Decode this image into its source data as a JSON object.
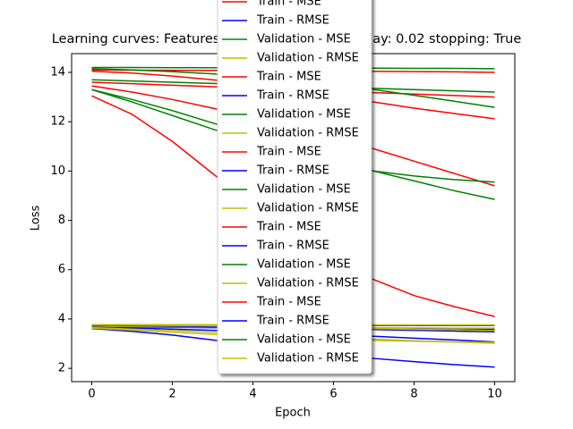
{
  "chart_data": {
    "type": "line",
    "title": "Learning curves: Features: 30 lr: 0.01 weight_decay: 0.02 stopping: True",
    "x_label": "Epoch",
    "y_label": "Loss",
    "x": [
      0,
      1,
      2,
      3,
      4,
      5,
      6,
      7,
      8,
      9,
      10
    ],
    "xlim": [
      -0.5,
      10.5
    ],
    "xticks": [
      0,
      2,
      4,
      6,
      8,
      10
    ],
    "ylim": [
      1.46,
      14.76
    ],
    "yticks": [
      2,
      4,
      6,
      8,
      10,
      12,
      14
    ],
    "legend": "center",
    "series": [
      {
        "name": "Train - MSE",
        "color": "#ff0000",
        "values": [
          14.1,
          14.09,
          14.08,
          14.08,
          14.07,
          14.06,
          14.05,
          14.04,
          14.03,
          14.02,
          14.0
        ]
      },
      {
        "name": "Train - RMSE",
        "color": "#0000ff",
        "values": [
          3.75,
          3.75,
          3.75,
          3.75,
          3.75,
          3.75,
          3.74,
          3.74,
          3.74,
          3.74,
          3.74
        ]
      },
      {
        "name": "Validation - MSE",
        "color": "#008000",
        "values": [
          14.2,
          14.2,
          14.19,
          14.19,
          14.18,
          14.18,
          14.17,
          14.17,
          14.16,
          14.16,
          14.15
        ]
      },
      {
        "name": "Validation - RMSE",
        "color": "#bfbf00",
        "values": [
          3.77,
          3.77,
          3.77,
          3.77,
          3.77,
          3.76,
          3.76,
          3.76,
          3.76,
          3.76,
          3.76
        ]
      },
      {
        "name": "Train - MSE",
        "color": "#ff0000",
        "values": [
          13.6,
          13.54,
          13.48,
          13.42,
          13.36,
          13.3,
          13.24,
          13.18,
          13.12,
          13.06,
          13.0
        ]
      },
      {
        "name": "Train - RMSE",
        "color": "#0000ff",
        "values": [
          3.68,
          3.67,
          3.66,
          3.65,
          3.64,
          3.63,
          3.62,
          3.61,
          3.6,
          3.59,
          3.58
        ]
      },
      {
        "name": "Validation - MSE",
        "color": "#008000",
        "values": [
          13.7,
          13.65,
          13.6,
          13.55,
          13.5,
          13.45,
          13.4,
          13.35,
          13.3,
          13.25,
          13.2
        ]
      },
      {
        "name": "Validation - RMSE",
        "color": "#bfbf00",
        "values": [
          3.7,
          3.69,
          3.68,
          3.68,
          3.67,
          3.66,
          3.65,
          3.65,
          3.64,
          3.63,
          3.63
        ]
      },
      {
        "name": "Train - MSE",
        "color": "#ff0000",
        "values": [
          14.05,
          13.97,
          13.85,
          13.7,
          13.52,
          13.3,
          13.06,
          12.8,
          12.55,
          12.33,
          12.12
        ]
      },
      {
        "name": "Train - RMSE",
        "color": "#0000ff",
        "values": [
          3.74,
          3.73,
          3.71,
          3.69,
          3.67,
          3.64,
          3.61,
          3.57,
          3.54,
          3.51,
          3.48
        ]
      },
      {
        "name": "Validation - MSE",
        "color": "#008000",
        "values": [
          14.15,
          14.1,
          14.03,
          13.94,
          13.82,
          13.68,
          13.5,
          13.3,
          13.07,
          12.83,
          12.58
        ]
      },
      {
        "name": "Validation - RMSE",
        "color": "#bfbf00",
        "values": [
          3.76,
          3.75,
          3.74,
          3.72,
          3.7,
          3.67,
          3.64,
          3.61,
          3.58,
          3.56,
          3.53
        ]
      },
      {
        "name": "Train - MSE",
        "color": "#ff0000",
        "values": [
          13.45,
          13.2,
          12.9,
          12.55,
          12.2,
          11.8,
          11.35,
          10.9,
          10.4,
          9.9,
          9.4
        ]
      },
      {
        "name": "Train - RMSE",
        "color": "#0000ff",
        "values": [
          3.66,
          3.63,
          3.59,
          3.54,
          3.49,
          3.43,
          3.37,
          3.3,
          3.22,
          3.15,
          3.07
        ]
      },
      {
        "name": "Validation - MSE",
        "color": "#008000",
        "values": [
          13.3,
          12.9,
          12.45,
          11.95,
          11.45,
          10.95,
          10.45,
          10.0,
          9.6,
          9.2,
          8.85
        ]
      },
      {
        "name": "Validation - RMSE",
        "color": "#bfbf00",
        "values": [
          3.65,
          3.59,
          3.53,
          3.46,
          3.39,
          3.32,
          3.25,
          3.18,
          3.12,
          3.07,
          3.02
        ]
      },
      {
        "name": "Train - MSE",
        "color": "#ff0000",
        "values": [
          13.05,
          12.3,
          11.2,
          9.9,
          8.6,
          7.4,
          6.3,
          5.6,
          4.95,
          4.5,
          4.1
        ]
      },
      {
        "name": "Train - RMSE",
        "color": "#0000ff",
        "values": [
          3.61,
          3.5,
          3.35,
          3.15,
          2.95,
          2.75,
          2.55,
          2.4,
          2.27,
          2.15,
          2.05
        ]
      },
      {
        "name": "Validation - MSE",
        "color": "#008000",
        "values": [
          13.3,
          12.8,
          12.25,
          11.7,
          11.2,
          10.75,
          10.35,
          10.0,
          9.8,
          9.65,
          9.55
        ]
      },
      {
        "name": "Validation - RMSE",
        "color": "#bfbf00",
        "values": [
          3.63,
          3.55,
          3.46,
          3.38,
          3.3,
          3.24,
          3.18,
          3.13,
          3.1,
          3.07,
          3.05
        ]
      }
    ]
  }
}
